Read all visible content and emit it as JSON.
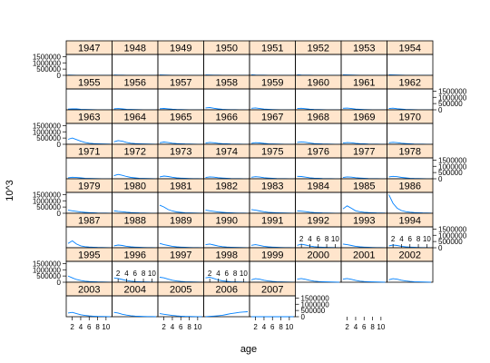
{
  "chart_data": {
    "type": "line",
    "layout": "trellis",
    "xlabel": "age",
    "ylabel": "10^3",
    "x_ticks": [
      2,
      4,
      6,
      8,
      10
    ],
    "y_ticks": [
      0,
      500000,
      1000000,
      1500000
    ],
    "xlim": [
      1,
      11
    ],
    "ylim": [
      0,
      1600000
    ],
    "series_color": "#0080ff",
    "strip_color": "#ffe5cc",
    "panel_rows": [
      [
        "1947",
        "1948",
        "1949",
        "1950",
        "1951",
        "1952",
        "1953",
        "1954"
      ],
      [
        "1955",
        "1956",
        "1957",
        "1958",
        "1959",
        "1960",
        "1961",
        "1962"
      ],
      [
        "1963",
        "1964",
        "1965",
        "1966",
        "1967",
        "1968",
        "1969",
        "1970"
      ],
      [
        "1971",
        "1972",
        "1973",
        "1974",
        "1975",
        "1976",
        "1977",
        "1978"
      ],
      [
        "1979",
        "1980",
        "1981",
        "1982",
        "1983",
        "1984",
        "1985",
        "1986"
      ],
      [
        "1987",
        "1988",
        "1989",
        "1990",
        "1991",
        "1992",
        "1993",
        "1994"
      ],
      [
        "1995",
        "1996",
        "1997",
        "1998",
        "1999",
        "2000",
        "2001",
        "2002"
      ],
      [
        "2003",
        "2004",
        "2005",
        "2006",
        "2007"
      ]
    ],
    "ages": [
      1,
      2,
      3,
      4,
      5,
      6,
      7,
      8,
      9,
      10,
      11
    ],
    "panels": {
      "1947": [
        20000,
        15000,
        10000,
        8000,
        6000,
        5000,
        4000,
        3000,
        3000,
        2000,
        2000
      ],
      "1948": [
        25000,
        18000,
        12000,
        9000,
        7000,
        5000,
        4000,
        3000,
        3000,
        2000,
        2000
      ],
      "1949": [
        30000,
        20000,
        15000,
        10000,
        8000,
        6000,
        5000,
        4000,
        3000,
        3000,
        2000
      ],
      "1950": [
        30000,
        22000,
        15000,
        11000,
        8000,
        6000,
        5000,
        4000,
        3000,
        3000,
        2000
      ],
      "1951": [
        35000,
        25000,
        18000,
        12000,
        9000,
        7000,
        5000,
        4000,
        3000,
        3000,
        2000
      ],
      "1952": [
        35000,
        25000,
        18000,
        12000,
        9000,
        7000,
        5000,
        4000,
        3000,
        3000,
        2000
      ],
      "1953": [
        40000,
        30000,
        20000,
        14000,
        10000,
        8000,
        6000,
        5000,
        4000,
        3000,
        2000
      ],
      "1954": [
        40000,
        30000,
        20000,
        14000,
        10000,
        8000,
        6000,
        5000,
        4000,
        3000,
        2000
      ],
      "1955": [
        60000,
        80000,
        70000,
        40000,
        30000,
        20000,
        15000,
        10000,
        8000,
        6000,
        5000
      ],
      "1956": [
        80000,
        100000,
        70000,
        40000,
        30000,
        20000,
        15000,
        10000,
        8000,
        6000,
        5000
      ],
      "1957": [
        90000,
        110000,
        80000,
        50000,
        30000,
        20000,
        15000,
        10000,
        8000,
        6000,
        5000
      ],
      "1958": [
        150000,
        180000,
        120000,
        70000,
        40000,
        25000,
        18000,
        12000,
        9000,
        7000,
        5000
      ],
      "1959": [
        120000,
        150000,
        100000,
        60000,
        35000,
        22000,
        15000,
        10000,
        8000,
        6000,
        5000
      ],
      "1960": [
        100000,
        120000,
        90000,
        50000,
        30000,
        20000,
        15000,
        10000,
        8000,
        6000,
        5000
      ],
      "1961": [
        120000,
        140000,
        100000,
        60000,
        35000,
        22000,
        15000,
        10000,
        8000,
        6000,
        5000
      ],
      "1962": [
        100000,
        130000,
        90000,
        55000,
        30000,
        20000,
        15000,
        10000,
        8000,
        6000,
        5000
      ],
      "1963": [
        400000,
        500000,
        380000,
        250000,
        150000,
        90000,
        60000,
        40000,
        30000,
        20000,
        15000
      ],
      "1964": [
        200000,
        300000,
        250000,
        150000,
        90000,
        60000,
        40000,
        30000,
        20000,
        15000,
        10000
      ],
      "1965": [
        120000,
        180000,
        140000,
        90000,
        60000,
        40000,
        30000,
        20000,
        15000,
        10000,
        8000
      ],
      "1966": [
        100000,
        150000,
        120000,
        80000,
        50000,
        35000,
        25000,
        18000,
        12000,
        9000,
        7000
      ],
      "1967": [
        80000,
        130000,
        110000,
        70000,
        45000,
        30000,
        20000,
        15000,
        10000,
        8000,
        6000
      ],
      "1968": [
        150000,
        200000,
        160000,
        100000,
        60000,
        40000,
        30000,
        20000,
        15000,
        10000,
        8000
      ],
      "1969": [
        100000,
        140000,
        120000,
        80000,
        50000,
        35000,
        25000,
        18000,
        12000,
        9000,
        7000
      ],
      "1970": [
        120000,
        160000,
        130000,
        90000,
        55000,
        35000,
        25000,
        18000,
        12000,
        9000,
        7000
      ],
      "1971": [
        80000,
        120000,
        100000,
        70000,
        45000,
        30000,
        20000,
        15000,
        10000,
        8000,
        6000
      ],
      "1972": [
        250000,
        350000,
        280000,
        180000,
        110000,
        70000,
        45000,
        30000,
        20000,
        15000,
        10000
      ],
      "1973": [
        150000,
        220000,
        180000,
        120000,
        75000,
        50000,
        35000,
        25000,
        18000,
        12000,
        9000
      ],
      "1974": [
        100000,
        150000,
        130000,
        90000,
        55000,
        35000,
        25000,
        18000,
        12000,
        9000,
        7000
      ],
      "1975": [
        120000,
        170000,
        140000,
        90000,
        55000,
        35000,
        25000,
        18000,
        12000,
        9000,
        7000
      ],
      "1976": [
        200000,
        180000,
        130000,
        80000,
        50000,
        35000,
        25000,
        18000,
        12000,
        9000,
        7000
      ],
      "1977": [
        100000,
        150000,
        130000,
        90000,
        55000,
        35000,
        25000,
        18000,
        12000,
        9000,
        7000
      ],
      "1978": [
        150000,
        200000,
        170000,
        110000,
        70000,
        45000,
        30000,
        20000,
        15000,
        10000,
        8000
      ],
      "1979": [
        250000,
        200000,
        150000,
        100000,
        70000,
        50000,
        35000,
        25000,
        18000,
        12000,
        9000
      ],
      "1980": [
        200000,
        150000,
        120000,
        90000,
        60000,
        40000,
        30000,
        20000,
        15000,
        10000,
        8000
      ],
      "1981": [
        650000,
        500000,
        300000,
        180000,
        110000,
        70000,
        45000,
        30000,
        20000,
        15000,
        10000
      ],
      "1982": [
        250000,
        200000,
        150000,
        100000,
        70000,
        50000,
        35000,
        25000,
        18000,
        12000,
        9000
      ],
      "1983": [
        300000,
        250000,
        180000,
        120000,
        80000,
        55000,
        40000,
        28000,
        20000,
        14000,
        10000
      ],
      "1984": [
        200000,
        170000,
        130000,
        90000,
        60000,
        40000,
        30000,
        20000,
        15000,
        10000,
        8000
      ],
      "1985": [
        350000,
        600000,
        400000,
        200000,
        120000,
        80000,
        55000,
        40000,
        28000,
        20000,
        14000
      ],
      "1986": [
        1500000,
        800000,
        400000,
        220000,
        130000,
        85000,
        55000,
        40000,
        28000,
        20000,
        14000
      ],
      "1987": [
        350000,
        550000,
        300000,
        150000,
        90000,
        60000,
        40000,
        28000,
        20000,
        14000,
        10000
      ],
      "1988": [
        150000,
        220000,
        180000,
        120000,
        75000,
        50000,
        35000,
        25000,
        18000,
        12000,
        9000
      ],
      "1989": [
        350000,
        250000,
        180000,
        120000,
        75000,
        50000,
        35000,
        25000,
        18000,
        12000,
        9000
      ],
      "1990": [
        250000,
        300000,
        220000,
        140000,
        85000,
        55000,
        40000,
        28000,
        20000,
        14000,
        10000
      ],
      "1991": [
        200000,
        250000,
        190000,
        120000,
        75000,
        50000,
        35000,
        25000,
        18000,
        12000,
        9000
      ],
      "1992": [
        200000,
        280000,
        220000,
        140000,
        85000,
        55000,
        40000,
        28000,
        20000,
        14000,
        10000
      ],
      "1993": [
        300000,
        250000,
        180000,
        120000,
        75000,
        50000,
        35000,
        25000,
        18000,
        12000,
        9000
      ],
      "1994": [
        150000,
        220000,
        180000,
        120000,
        75000,
        50000,
        35000,
        25000,
        18000,
        12000,
        9000
      ],
      "1995": [
        500000,
        350000,
        220000,
        140000,
        85000,
        55000,
        40000,
        28000,
        20000,
        14000,
        10000
      ],
      "1996": [
        350000,
        300000,
        220000,
        140000,
        85000,
        55000,
        40000,
        28000,
        20000,
        14000,
        10000
      ],
      "1997": [
        400000,
        350000,
        250000,
        160000,
        100000,
        65000,
        45000,
        30000,
        20000,
        15000,
        10000
      ],
      "1998": [
        350000,
        400000,
        300000,
        180000,
        110000,
        70000,
        45000,
        30000,
        20000,
        15000,
        10000
      ],
      "1999": [
        200000,
        280000,
        240000,
        160000,
        100000,
        65000,
        45000,
        30000,
        20000,
        15000,
        10000
      ],
      "2000": [
        250000,
        300000,
        230000,
        150000,
        90000,
        60000,
        40000,
        28000,
        20000,
        14000,
        10000
      ],
      "2001": [
        250000,
        300000,
        230000,
        150000,
        90000,
        60000,
        40000,
        28000,
        20000,
        14000,
        10000
      ],
      "2002": [
        200000,
        280000,
        240000,
        160000,
        100000,
        65000,
        45000,
        30000,
        20000,
        15000,
        10000
      ],
      "2003": [
        300000,
        350000,
        250000,
        160000,
        100000,
        65000,
        45000,
        30000,
        20000,
        15000,
        10000
      ],
      "2004": [
        350000,
        300000,
        200000,
        130000,
        80000,
        50000,
        35000,
        25000,
        18000,
        12000,
        9000
      ],
      "2005": [
        250000,
        200000,
        150000,
        100000,
        65000,
        45000,
        30000,
        20000,
        15000,
        10000,
        8000
      ],
      "2006": [
        10000,
        30000,
        50000,
        80000,
        120000,
        180000,
        250000,
        300000,
        350000,
        380000,
        400000
      ],
      "2007": [
        0,
        0,
        0,
        0,
        0,
        0,
        0,
        0,
        0,
        0,
        0
      ]
    }
  }
}
